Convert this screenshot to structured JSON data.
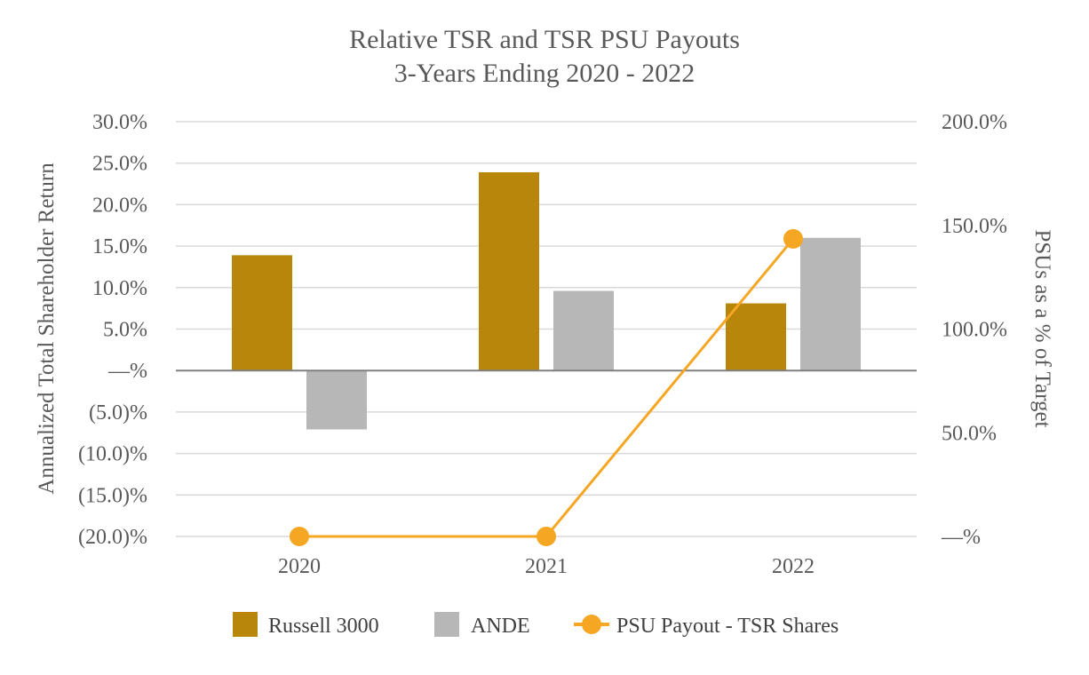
{
  "chart_data": {
    "type": "bar",
    "title": [
      "Relative TSR and TSR PSU Payouts",
      "3-Years Ending 2020 - 2022"
    ],
    "categories": [
      "2020",
      "2021",
      "2022"
    ],
    "ylabel": "Annualized Total Shareholder Return",
    "y2label": "PSUs as a % of Target",
    "ylim": [
      -20,
      30
    ],
    "y2lim": [
      0,
      200
    ],
    "yticks": [
      30,
      25,
      20,
      15,
      10,
      5,
      0,
      -5,
      -10,
      -15,
      -20
    ],
    "ytick_labels": [
      "30.0%",
      "25.0%",
      "20.0%",
      "15.0%",
      "10.0%",
      "5.0%",
      "—%",
      "(5.0)%",
      "(10.0)%",
      "(15.0)%",
      "(20.0)%"
    ],
    "y2ticks": [
      200,
      150,
      100,
      50,
      0
    ],
    "y2tick_labels": [
      "200.0%",
      "150.0%",
      "100.0%",
      "50.0%",
      "—%"
    ],
    "grid": true,
    "legend_position": "bottom",
    "series": [
      {
        "name": "Russell 3000",
        "type": "bar",
        "axis": "left",
        "color": "#B8860B",
        "values": [
          13.9,
          23.9,
          8.1
        ]
      },
      {
        "name": "ANDE",
        "type": "bar",
        "axis": "left",
        "color": "#B7B7B7",
        "values": [
          -7.1,
          9.6,
          16.0
        ]
      },
      {
        "name": "PSU Payout - TSR Shares",
        "type": "line",
        "axis": "right",
        "color": "#F5A623",
        "values": [
          0,
          0,
          143.5
        ]
      }
    ]
  }
}
